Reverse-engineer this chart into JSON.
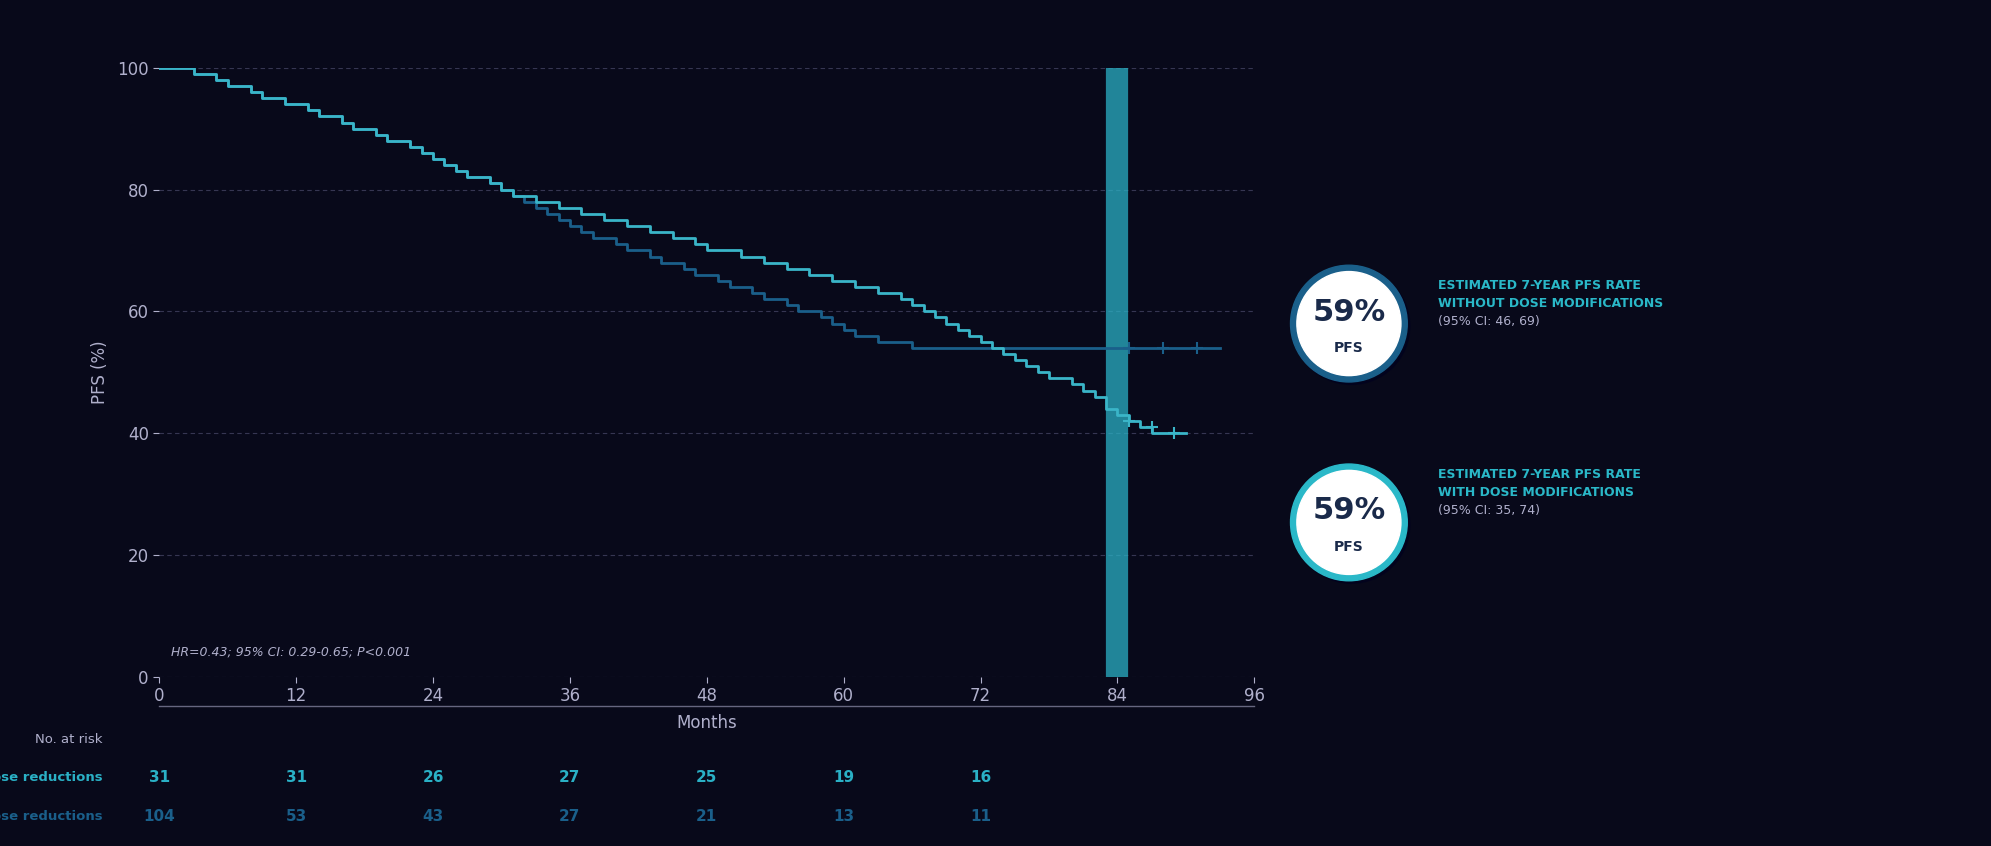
{
  "bg_color": "#08091a",
  "plot_bg_color": "#08091a",
  "ylabel": "PFS (%)",
  "xlabel": "Months",
  "ylim": [
    0,
    100
  ],
  "xlim": [
    0,
    96
  ],
  "yticks": [
    0,
    20,
    40,
    60,
    80,
    100
  ],
  "xticks": [
    0,
    12,
    24,
    36,
    48,
    60,
    72,
    84,
    96
  ],
  "xtick_labels": [
    "0",
    "12",
    "24",
    "36",
    "48",
    "60",
    "72",
    "84",
    "96"
  ],
  "vertical_line_x": 84,
  "line_color_without": "#1a5f8a",
  "line_color_with": "#3ab5c8",
  "grid_color": "#4a4a6a",
  "text_color": "#b0b0cc",
  "cyan_color": "#2ab0c5",
  "blue_color": "#1a5f8a",
  "at_risk_label": "No. at risk",
  "at_risk_with_label": "With dose reductions",
  "at_risk_without_label": "Without dose reductions",
  "at_risk_with": [
    31,
    31,
    26,
    27,
    25,
    19,
    16
  ],
  "at_risk_without": [
    104,
    53,
    43,
    27,
    21,
    13,
    11
  ],
  "at_risk_times": [
    0,
    12,
    24,
    36,
    48,
    60,
    72
  ],
  "footnote": "HR=0.43; 95% CI: 0.29-0.65; P<0.001",
  "circle_without_ring": "#1a5f8a",
  "circle_with_ring": "#2ab8c8",
  "circle_text_color": "#1a2a4a",
  "ann_text_color": "#2ab8c8",
  "ann_ci_color": "#b0b0cc",
  "without_label_line1": "ESTIMATED 7-YEAR PFS RATE",
  "without_label_line2": "WITHOUT DOSE MODIFICATIONS",
  "without_label_line3": "(95% CI: 46, 69)",
  "with_label_line1": "ESTIMATED 7-YEAR PFS RATE",
  "with_label_line2": "WITH DOSE MODIFICATIONS",
  "with_label_line3": "(95% CI: 35, 74)"
}
